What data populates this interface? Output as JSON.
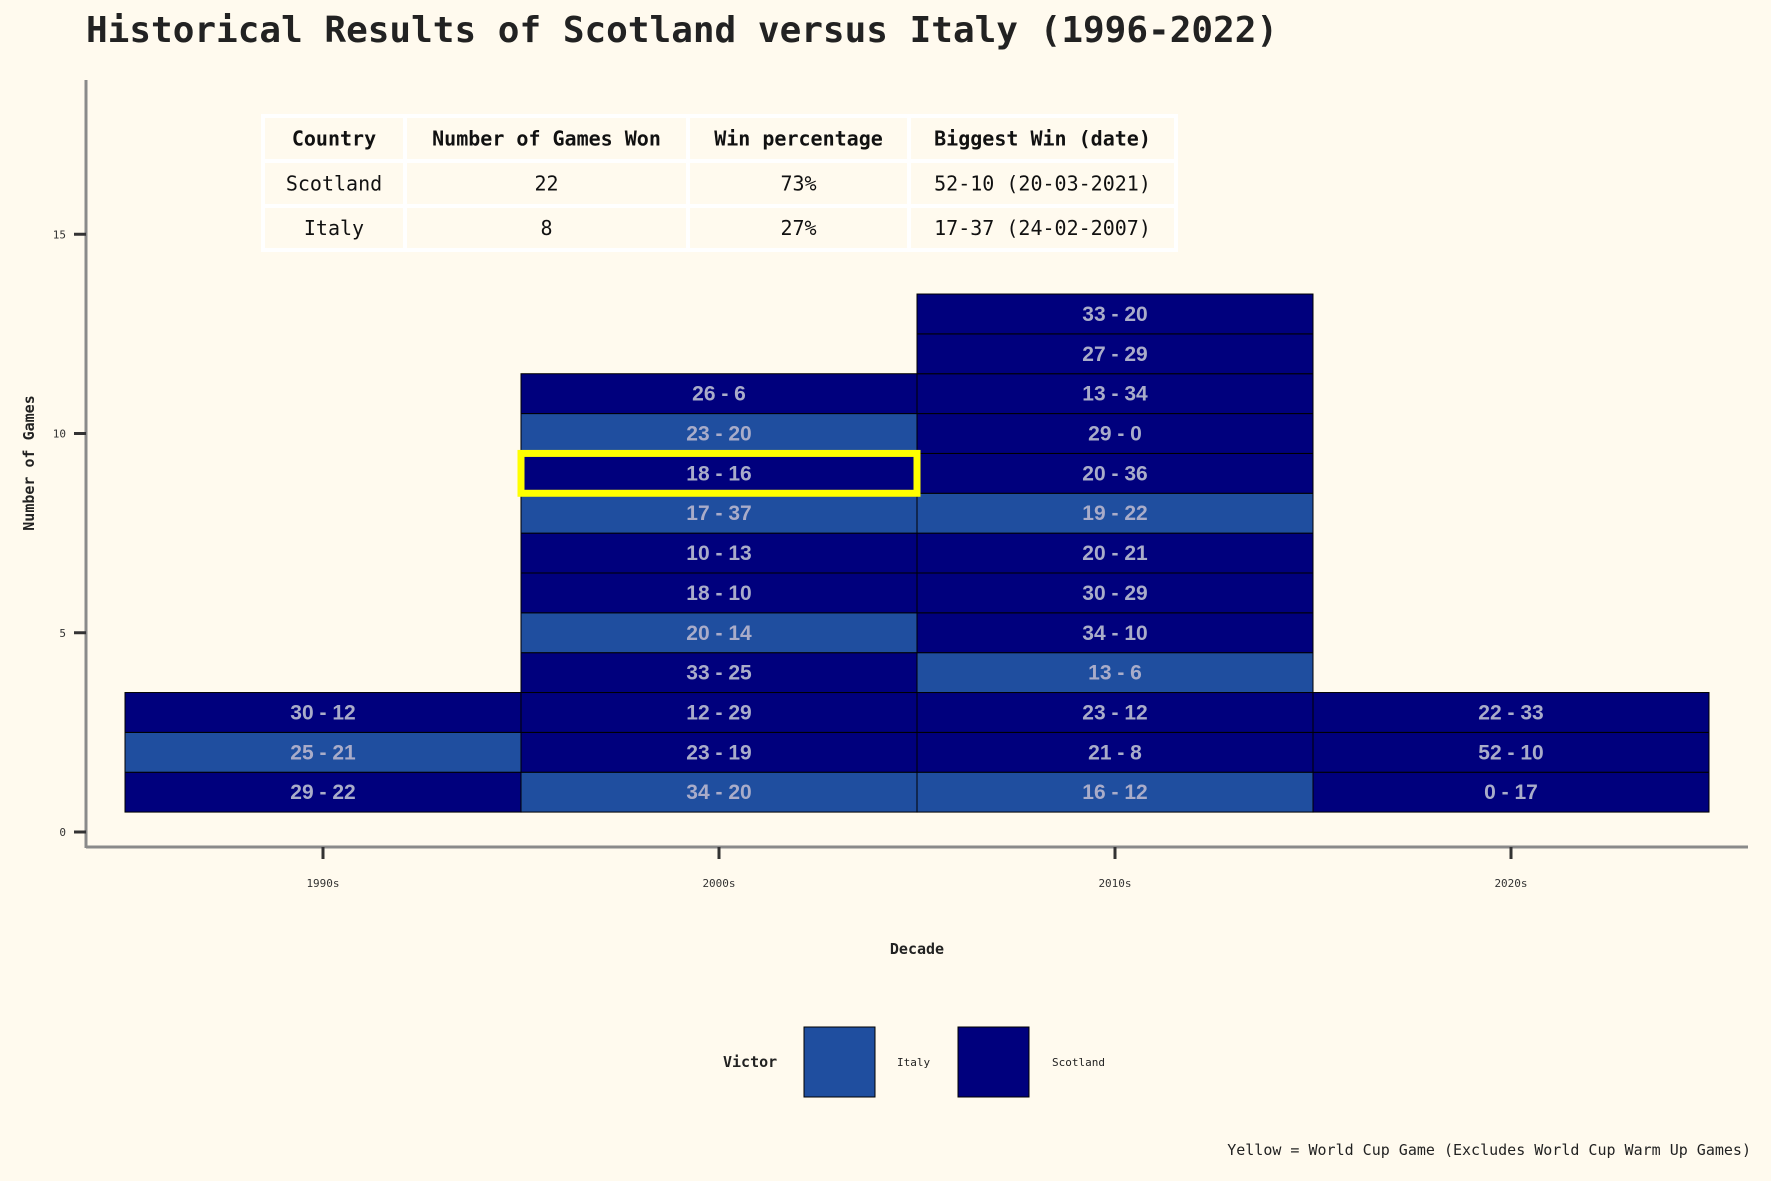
{
  "chart_data": {
    "type": "bar",
    "title": "Historical Results of Scotland versus Italy (1996-2022)",
    "xlabel": "Decade",
    "ylabel": "Number of Games",
    "ylim": [
      0,
      18
    ],
    "yticks": [
      0,
      5,
      10,
      15
    ],
    "categories": [
      "1990s",
      "2000s",
      "2010s",
      "2020s"
    ],
    "colors": {
      "Italy": "#1f4e9f",
      "Scotland": "#00007d",
      "world_cup_highlight": "#ffff00"
    },
    "games": [
      {
        "decade": "1990s",
        "score": "29 - 22",
        "victor": "Scotland",
        "world_cup": false
      },
      {
        "decade": "1990s",
        "score": "25 - 21",
        "victor": "Italy",
        "world_cup": false
      },
      {
        "decade": "1990s",
        "score": "30 - 12",
        "victor": "Scotland",
        "world_cup": false
      },
      {
        "decade": "2000s",
        "score": "34 - 20",
        "victor": "Italy",
        "world_cup": false
      },
      {
        "decade": "2000s",
        "score": "23 - 19",
        "victor": "Scotland",
        "world_cup": false
      },
      {
        "decade": "2000s",
        "score": "12 - 29",
        "victor": "Scotland",
        "world_cup": false
      },
      {
        "decade": "2000s",
        "score": "33 - 25",
        "victor": "Scotland",
        "world_cup": false
      },
      {
        "decade": "2000s",
        "score": "20 - 14",
        "victor": "Italy",
        "world_cup": false
      },
      {
        "decade": "2000s",
        "score": "18 - 10",
        "victor": "Scotland",
        "world_cup": false
      },
      {
        "decade": "2000s",
        "score": "10 - 13",
        "victor": "Scotland",
        "world_cup": false
      },
      {
        "decade": "2000s",
        "score": "17 - 37",
        "victor": "Italy",
        "world_cup": false
      },
      {
        "decade": "2000s",
        "score": "18 - 16",
        "victor": "Scotland",
        "world_cup": true
      },
      {
        "decade": "2000s",
        "score": "23 - 20",
        "victor": "Italy",
        "world_cup": false
      },
      {
        "decade": "2000s",
        "score": "26 - 6",
        "victor": "Scotland",
        "world_cup": false
      },
      {
        "decade": "2010s",
        "score": "16 - 12",
        "victor": "Italy",
        "world_cup": false
      },
      {
        "decade": "2010s",
        "score": "21 - 8",
        "victor": "Scotland",
        "world_cup": false
      },
      {
        "decade": "2010s",
        "score": "23 - 12",
        "victor": "Scotland",
        "world_cup": false
      },
      {
        "decade": "2010s",
        "score": "13 - 6",
        "victor": "Italy",
        "world_cup": false
      },
      {
        "decade": "2010s",
        "score": "34 - 10",
        "victor": "Scotland",
        "world_cup": false
      },
      {
        "decade": "2010s",
        "score": "30 - 29",
        "victor": "Scotland",
        "world_cup": false
      },
      {
        "decade": "2010s",
        "score": "20 - 21",
        "victor": "Scotland",
        "world_cup": false
      },
      {
        "decade": "2010s",
        "score": "19 - 22",
        "victor": "Italy",
        "world_cup": false
      },
      {
        "decade": "2010s",
        "score": "20 - 36",
        "victor": "Scotland",
        "world_cup": false
      },
      {
        "decade": "2010s",
        "score": "29 - 0",
        "victor": "Scotland",
        "world_cup": false
      },
      {
        "decade": "2010s",
        "score": "13 - 34",
        "victor": "Scotland",
        "world_cup": false
      },
      {
        "decade": "2010s",
        "score": "27 - 29",
        "victor": "Scotland",
        "world_cup": false
      },
      {
        "decade": "2010s",
        "score": "33 - 20",
        "victor": "Scotland",
        "world_cup": false
      },
      {
        "decade": "2020s",
        "score": "0 - 17",
        "victor": "Scotland",
        "world_cup": false
      },
      {
        "decade": "2020s",
        "score": "52 - 10",
        "victor": "Scotland",
        "world_cup": false
      },
      {
        "decade": "2020s",
        "score": "22 - 33",
        "victor": "Scotland",
        "world_cup": false
      }
    ],
    "legend": {
      "title": "Victor",
      "position": "bottom",
      "entries": [
        "Italy",
        "Scotland"
      ]
    },
    "summary_table": {
      "columns": [
        "Country",
        "Number of Games Won",
        "Win percentage",
        "Biggest Win (date)"
      ],
      "rows": [
        [
          "Scotland",
          "22",
          "73%",
          "52-10 (20-03-2021)"
        ],
        [
          "Italy",
          "8",
          "27%",
          "17-37 (24-02-2007)"
        ]
      ]
    },
    "caption": "Yellow = World Cup Game (Excludes World Cup Warm Up Games)"
  }
}
